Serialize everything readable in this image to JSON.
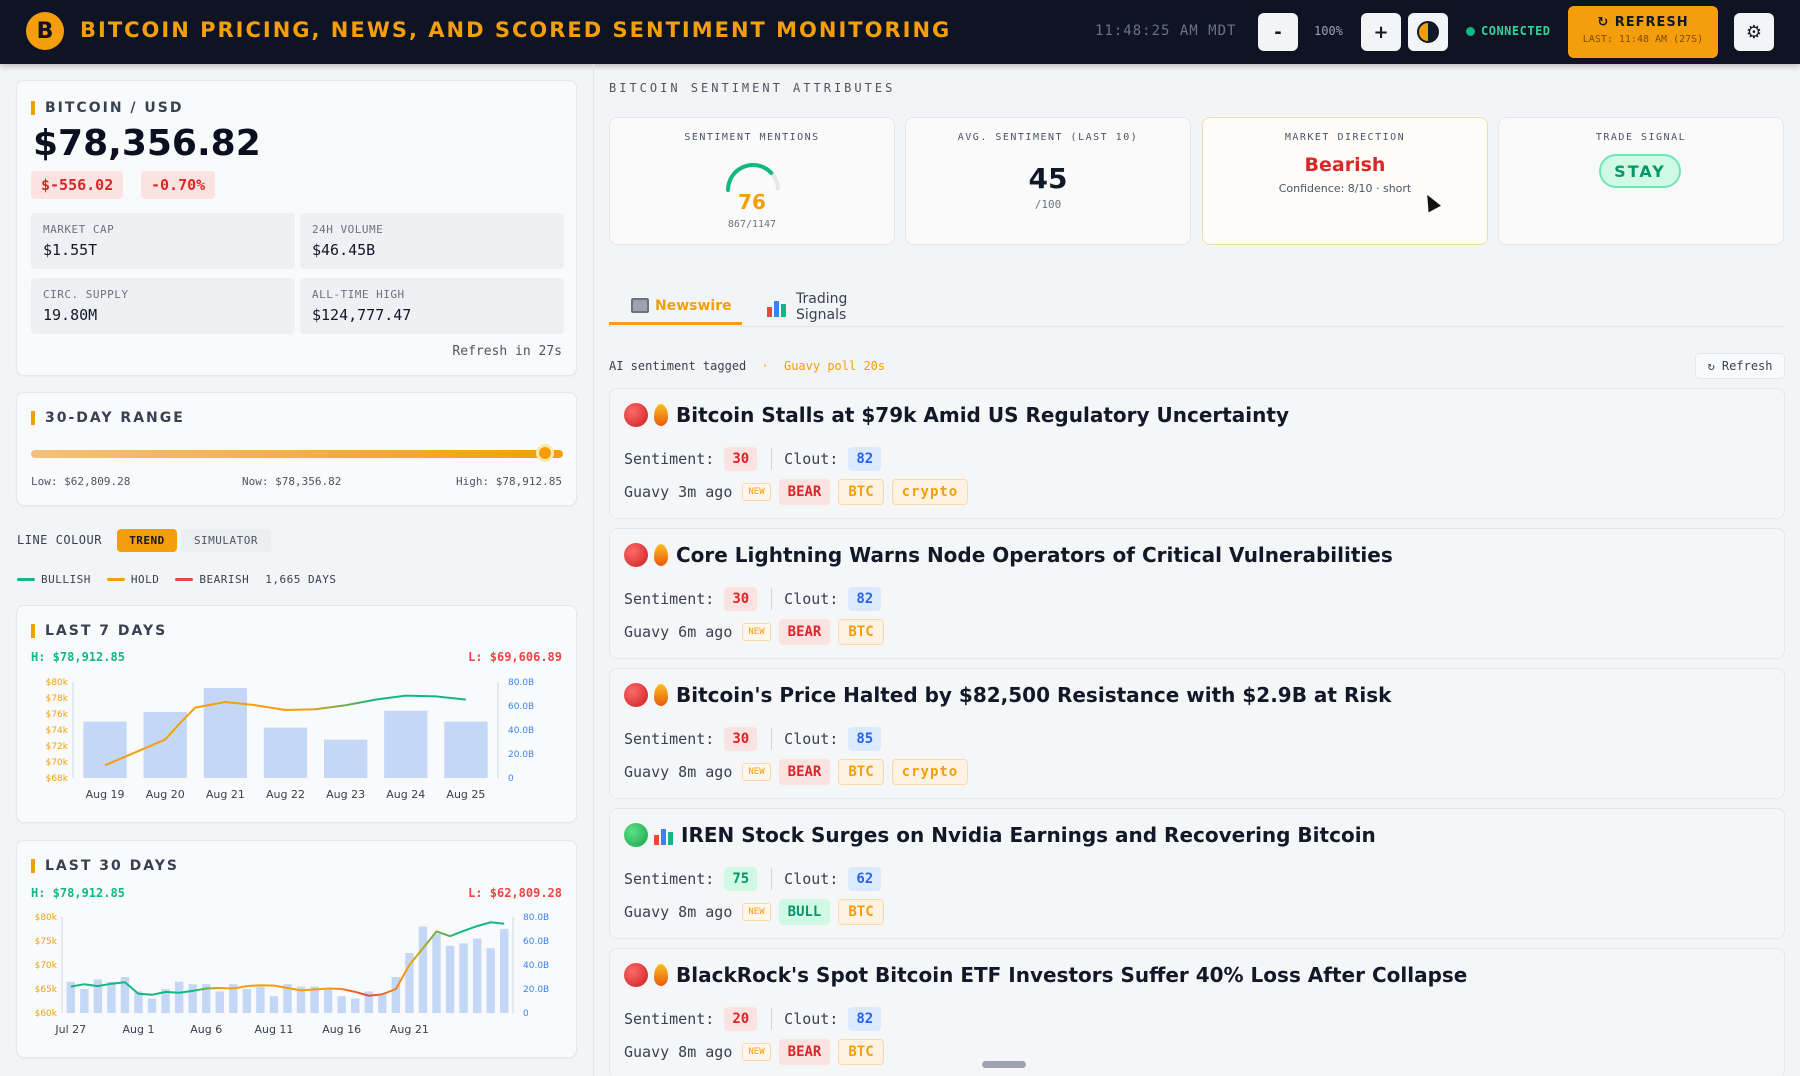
{
  "header": {
    "logo_glyph": "B",
    "title": "BITCOIN PRICING, NEWS, AND SCORED SENTIMENT MONITORING",
    "clock": "11:48:25 AM MDT",
    "zoom_out_label": "-",
    "zoom_level": "100%",
    "zoom_in_label": "+",
    "theme_icon": "half-moon-icon",
    "connection": "CONNECTED",
    "refresh_label": "↻ REFRESH",
    "refresh_last": "LAST: 11:48 AM (27S)",
    "settings_icon": "gear-icon",
    "settings_glyph": "⚙"
  },
  "colors": {
    "accent": "#f59e0b",
    "bull": "#10b981",
    "bear": "#ef4444",
    "hold": "#f59e0b",
    "bar": "#bcd0f5"
  },
  "price_card": {
    "title": "BITCOIN / USD",
    "price": "$78,356.82",
    "change_abs": "$-556.02",
    "change_pct": "-0.70%",
    "stats": [
      {
        "label": "MARKET CAP",
        "value": "$1.55T"
      },
      {
        "label": "24H VOLUME",
        "value": "$46.45B"
      },
      {
        "label": "CIRC. SUPPLY",
        "value": "19.80M"
      },
      {
        "label": "ALL-TIME HIGH",
        "value": "$124,777.47"
      }
    ],
    "refresh_in": "Refresh in 27s"
  },
  "range_card": {
    "title": "30-DAY RANGE",
    "low_label": "Low: $62,809.28",
    "now_label": "Now: $78,356.82",
    "high_label": "High: $78,912.85",
    "low": 62809.28,
    "now": 78356.82,
    "high": 78912.85
  },
  "line_colour": {
    "label": "LINE COLOUR",
    "options": [
      "TREND",
      "SIMULATOR"
    ],
    "selected": "TREND",
    "legend": [
      "BULLISH",
      "HOLD",
      "BEARISH"
    ],
    "days": "1,665 DAYS"
  },
  "chart_data": [
    {
      "type": "bar",
      "title": "LAST 7 DAYS",
      "high_label": "H: $78,912.85",
      "low_label": "L: $69,606.89",
      "categories": [
        "Aug 19",
        "Aug 20",
        "Aug 21",
        "Aug 22",
        "Aug 23",
        "Aug 24",
        "Aug 25"
      ],
      "y_ticks": [
        "$80k",
        "$78k",
        "$76k",
        "$74k",
        "$72k",
        "$70k",
        "$68k"
      ],
      "y2_ticks": [
        "80.0B",
        "60.0B",
        "40.0B",
        "20.0B",
        "0"
      ],
      "ylim": [
        68000,
        80000
      ],
      "y2lim": [
        0,
        80
      ],
      "volume_values": [
        47,
        55,
        75,
        42,
        32,
        56,
        47
      ],
      "price_x": [
        0,
        0.5,
        1,
        1.25,
        1.5,
        2,
        2.5,
        3,
        3.5,
        4,
        4.5,
        5,
        5.5,
        6
      ],
      "price_values": [
        69600,
        71200,
        72800,
        74900,
        76800,
        77500,
        77100,
        76500,
        76600,
        77100,
        77800,
        78300,
        78200,
        77800
      ]
    },
    {
      "type": "bar",
      "title": "LAST 30 DAYS",
      "high_label": "H: $78,912.85",
      "low_label": "L: $62,809.28",
      "categories": [
        "Jul 27",
        "Aug 1",
        "Aug 6",
        "Aug 11",
        "Aug 16",
        "Aug 21"
      ],
      "category_index": [
        0,
        5,
        10,
        15,
        20,
        25
      ],
      "y_ticks": [
        "$80k",
        "$75k",
        "$70k",
        "$65k",
        "$60k"
      ],
      "y2_ticks": [
        "80.0B",
        "60.0B",
        "40.0B",
        "20.0B",
        "0"
      ],
      "ylim": [
        60000,
        80000
      ],
      "y2lim": [
        0,
        80
      ],
      "volume_values": [
        26,
        20,
        28,
        26,
        30,
        18,
        12,
        20,
        26,
        24,
        24,
        18,
        24,
        20,
        22,
        14,
        24,
        22,
        22,
        20,
        14,
        12,
        18,
        16,
        30,
        50,
        72,
        66,
        56,
        58,
        62,
        54,
        70
      ],
      "price_values": [
        65500,
        66000,
        65600,
        66100,
        66400,
        64000,
        63800,
        64400,
        64200,
        64600,
        65100,
        65200,
        65100,
        65600,
        65800,
        65700,
        65200,
        64700,
        64900,
        65100,
        65000,
        64400,
        63600,
        63900,
        65000,
        70000,
        73500,
        77000,
        76000,
        77100,
        78100,
        78900,
        78600
      ]
    }
  ],
  "sentiment": {
    "section_title": "BITCOIN SENTIMENT ATTRIBUTES",
    "mentions": {
      "label": "SENTIMENT MENTIONS",
      "value": "76",
      "sub": "867/1147",
      "fraction": 0.76
    },
    "avg": {
      "label": "AVG. SENTIMENT (LAST 10)",
      "value": "45",
      "sub": "/100"
    },
    "direction": {
      "label": "MARKET DIRECTION",
      "value": "Bearish",
      "sub": "Confidence: 8/10 · short"
    },
    "signal": {
      "label": "TRADE SIGNAL",
      "value": "STAY"
    }
  },
  "tabs": [
    {
      "label": "Newswire",
      "icon": "newspaper-icon",
      "active": true
    },
    {
      "label": "Trading Signals",
      "icon": "bar-chart-icon",
      "active": false
    }
  ],
  "feed": {
    "meta": "AI sentiment tagged",
    "dot": "·",
    "poll": "Guavy poll 20s",
    "refresh_label": "↻ Refresh",
    "sentiment_label": "Sentiment:",
    "clout_label": "Clout:",
    "new_tag": "NEW",
    "items": [
      {
        "title": "Bitcoin Stalls at $79k Amid US Regulatory Uncertainty",
        "mood": "bear",
        "sentiment": "30",
        "clout": "82",
        "source": "Guavy 3m ago",
        "tags": [
          "BEAR",
          "BTC",
          "crypto"
        ]
      },
      {
        "title": "Core Lightning Warns Node Operators of Critical Vulnerabilities",
        "mood": "bear",
        "sentiment": "30",
        "clout": "82",
        "source": "Guavy 6m ago",
        "tags": [
          "BEAR",
          "BTC"
        ]
      },
      {
        "title": "Bitcoin's Price Halted by $82,500 Resistance with $2.9B at Risk",
        "mood": "bear",
        "sentiment": "30",
        "clout": "85",
        "source": "Guavy 8m ago",
        "tags": [
          "BEAR",
          "BTC",
          "crypto"
        ]
      },
      {
        "title": "IREN Stock Surges on Nvidia Earnings and Recovering Bitcoin",
        "mood": "bull",
        "sentiment": "75",
        "clout": "62",
        "source": "Guavy 8m ago",
        "tags": [
          "BULL",
          "BTC"
        ]
      },
      {
        "title": "BlackRock's Spot Bitcoin ETF Investors Suffer 40% Loss After Collapse",
        "mood": "bear",
        "sentiment": "20",
        "clout": "82",
        "source": "Guavy 8m ago",
        "tags": [
          "BEAR",
          "BTC"
        ]
      }
    ]
  }
}
